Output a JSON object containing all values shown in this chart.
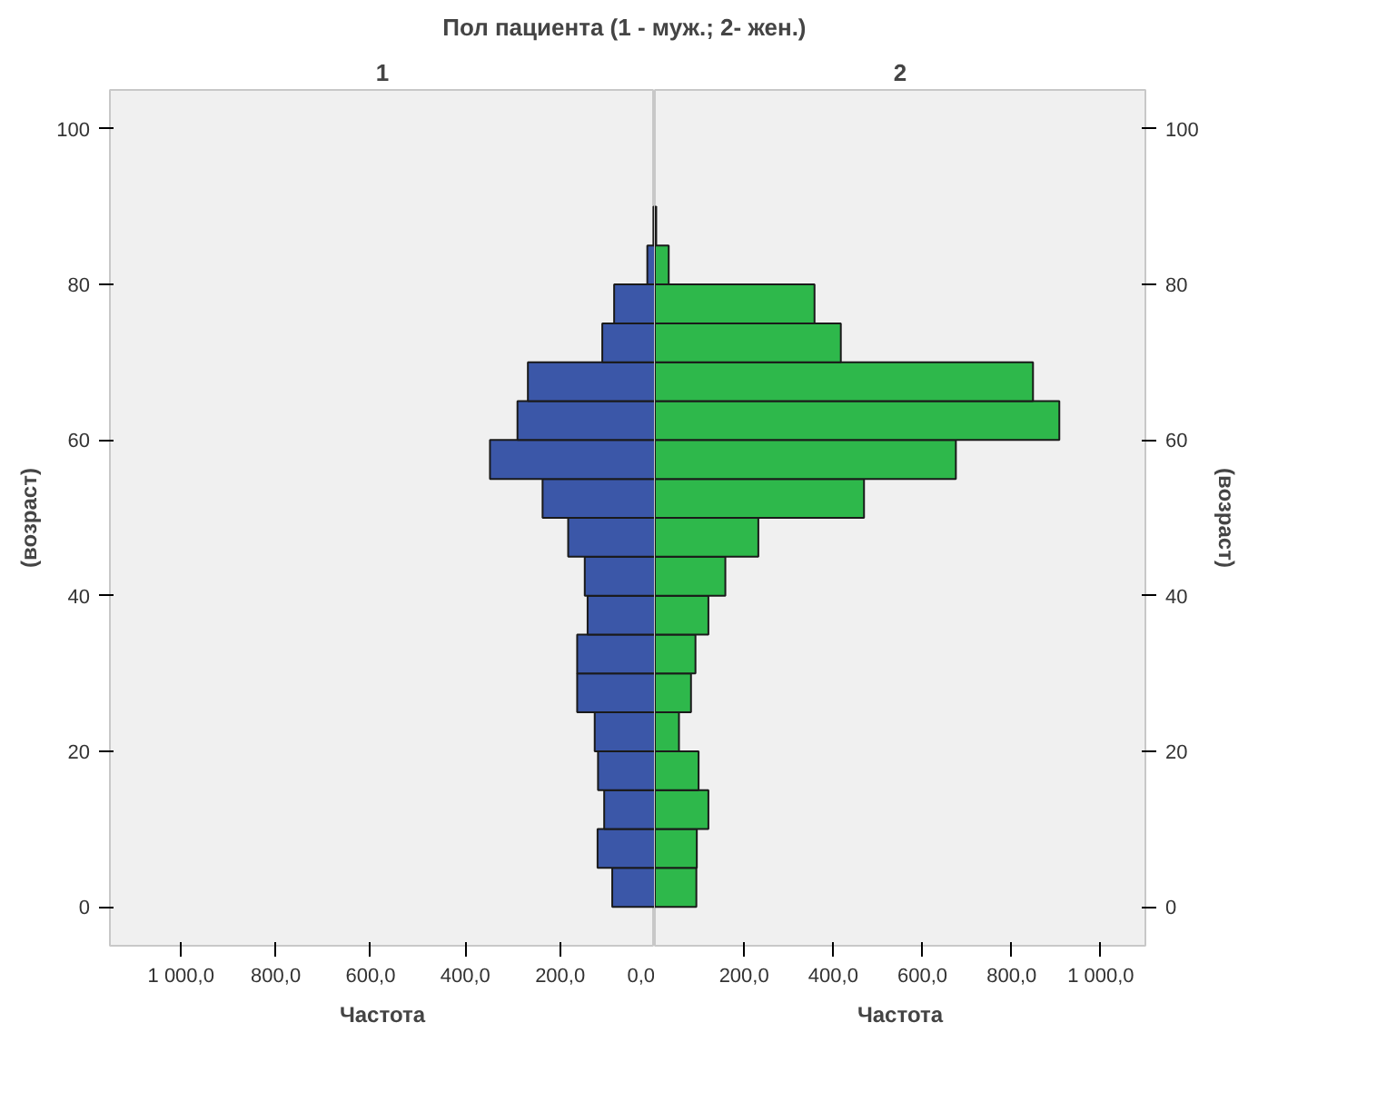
{
  "chart_data": [
    {
      "type": "histogram",
      "orientation": "horizontal",
      "title": "Пол  пациента (1 - муж.; 2- жен.)",
      "subtitle": "1",
      "xlabel": "Частота",
      "ylabel": "(возраст)",
      "color": "#3b57a8",
      "bins": [
        0,
        5,
        10,
        15,
        20,
        25,
        30,
        35,
        40,
        45,
        50,
        55,
        60,
        65,
        70,
        75,
        80,
        85,
        90
      ],
      "values": [
        90,
        121,
        107,
        120,
        127,
        164,
        164,
        142,
        148,
        183,
        237,
        348,
        290,
        268,
        111,
        86,
        16,
        3
      ],
      "xlim": [
        1150,
        0
      ],
      "xticks": [
        {
          "value": 1000,
          "label": "1 000,0"
        },
        {
          "value": 800,
          "label": "800,0"
        },
        {
          "value": 600,
          "label": "600,0"
        },
        {
          "value": 400,
          "label": "400,0"
        },
        {
          "value": 200,
          "label": "200,0"
        },
        {
          "value": 0,
          "label": "0,0"
        }
      ],
      "ylim": [
        -5,
        105
      ],
      "yticks": [
        0,
        20,
        40,
        60,
        80,
        100
      ],
      "grid": false
    },
    {
      "type": "histogram",
      "orientation": "horizontal",
      "subtitle": "2",
      "xlabel": "Частота",
      "ylabel": "(возраст)",
      "color": "#2eb84b",
      "bins": [
        0,
        5,
        10,
        15,
        20,
        25,
        30,
        35,
        40,
        45,
        50,
        55,
        60,
        65,
        70,
        75,
        80,
        85,
        90
      ],
      "values": [
        93,
        94,
        120,
        98,
        54,
        81,
        91,
        120,
        158,
        232,
        469,
        675,
        907,
        848,
        417,
        358,
        31,
        3
      ],
      "xlim": [
        0,
        1100
      ],
      "xticks": [
        {
          "value": 200,
          "label": "200,0"
        },
        {
          "value": 400,
          "label": "400,0"
        },
        {
          "value": 600,
          "label": "600,0"
        },
        {
          "value": 800,
          "label": "800,0"
        },
        {
          "value": 1000,
          "label": "1 000,0"
        }
      ],
      "ylim": [
        -5,
        105
      ],
      "yticks": [
        0,
        20,
        40,
        60,
        80,
        100
      ],
      "grid": false
    }
  ]
}
